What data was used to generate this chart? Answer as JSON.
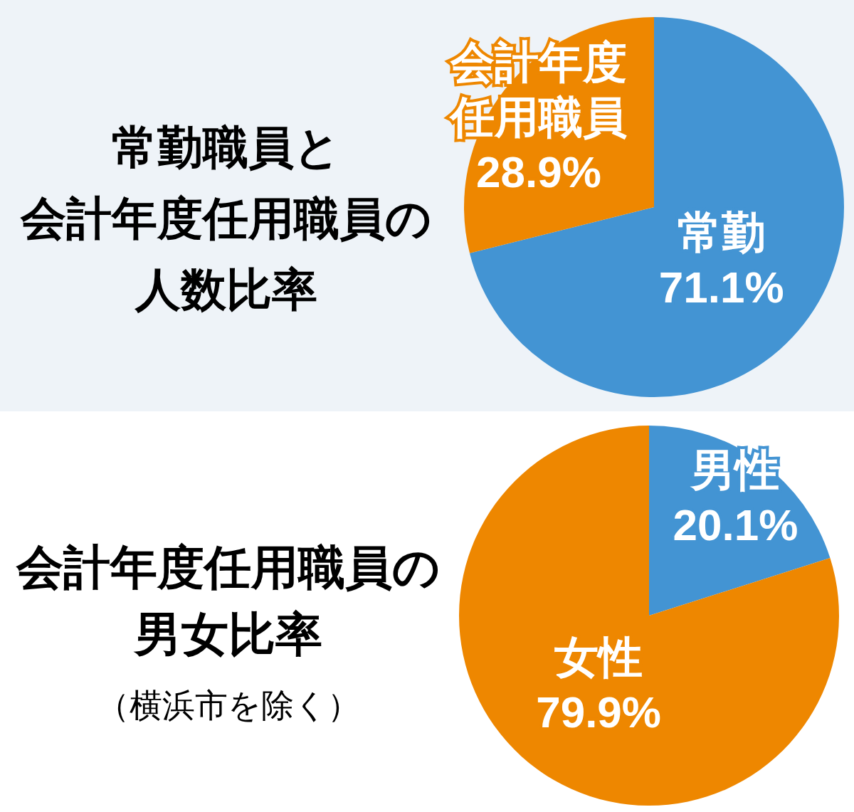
{
  "chart_data": [
    {
      "type": "pie",
      "title": "常勤職員と会計年度任用職員の人数比率",
      "categories": [
        "常勤",
        "会計年度任用職員"
      ],
      "values": [
        71.1,
        28.9
      ],
      "colors": [
        "#4394d3",
        "#ee8700"
      ],
      "value_labels": [
        "71.1%",
        "28.9%"
      ]
    },
    {
      "type": "pie",
      "title": "会計年度任用職員の男女比率",
      "subtitle": "（横浜市を除く）",
      "categories": [
        "男性",
        "女性"
      ],
      "values": [
        20.1,
        79.9
      ],
      "colors": [
        "#4394d3",
        "#ee8700"
      ],
      "value_labels": [
        "20.1%",
        "79.9%"
      ]
    }
  ]
}
